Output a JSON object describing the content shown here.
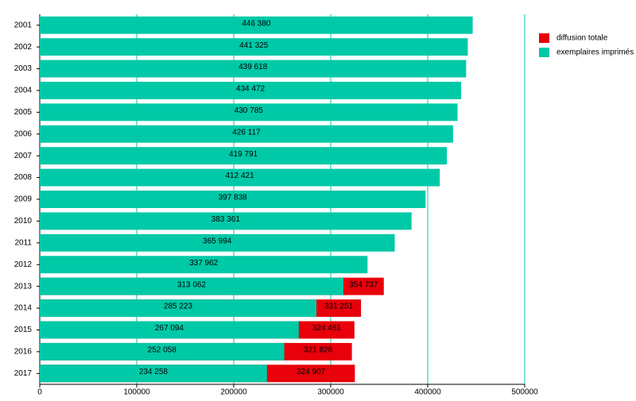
{
  "chart_data": {
    "type": "bar",
    "orientation": "horizontal",
    "overlap": true,
    "categories": [
      "2001",
      "2002",
      "2003",
      "2004",
      "2005",
      "2006",
      "2007",
      "2008",
      "2009",
      "2010",
      "2011",
      "2012",
      "2013",
      "2014",
      "2015",
      "2016",
      "2017"
    ],
    "series": [
      {
        "name": "diffusion totale",
        "color": "#e8000b",
        "values": [
          null,
          null,
          null,
          null,
          null,
          null,
          null,
          null,
          null,
          null,
          null,
          null,
          354737,
          331251,
          324451,
          321828,
          324907
        ],
        "value_labels": [
          null,
          null,
          null,
          null,
          null,
          null,
          null,
          null,
          null,
          null,
          null,
          null,
          "354 737",
          "331 251",
          "324 451",
          "321 828",
          "324 907"
        ]
      },
      {
        "name": "exemplaires imprimés",
        "color": "#00c9a7",
        "values": [
          446380,
          441325,
          439618,
          434472,
          430785,
          426117,
          419791,
          412421,
          397838,
          383361,
          365994,
          337962,
          313062,
          285223,
          267094,
          252058,
          234258
        ],
        "value_labels": [
          "446 380",
          "441 325",
          "439 618",
          "434 472",
          "430 785",
          "426 117",
          "419 791",
          "412 421",
          "397 838",
          "383 361",
          "365 994",
          "337 962",
          "313 062",
          "285 223",
          "267 094",
          "252 058",
          "234 258"
        ]
      }
    ],
    "xlim": [
      0,
      500000
    ],
    "xticks": [
      0,
      100000,
      200000,
      300000,
      400000,
      500000
    ],
    "grid": true,
    "legend": "top-right"
  }
}
